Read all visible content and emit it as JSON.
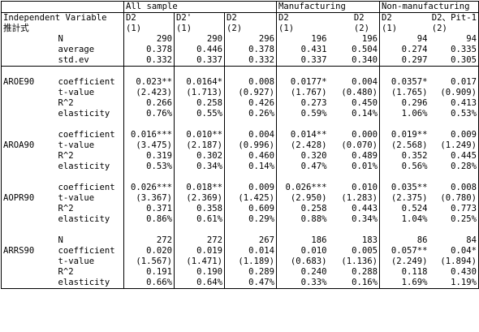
{
  "groups": {
    "all": "All sample",
    "mfg": "Manufacturing",
    "nonmfg": "Non-manufacturing"
  },
  "header": {
    "independent_variable": "Independent Variable",
    "estimation": "推計式",
    "columns": [
      {
        "name": "D2",
        "sub": "(1)"
      },
      {
        "name": "D2'",
        "sub": "(1)"
      },
      {
        "name": "D2",
        "sub": "(2)"
      },
      {
        "name": "D2",
        "sub": "(1)"
      },
      {
        "name": "D2",
        "sub": "(2)"
      },
      {
        "name": "D2",
        "sub": "(1)"
      },
      {
        "name": "D2、Pit-1",
        "sub": "(2)"
      }
    ]
  },
  "summary": {
    "n": {
      "label": "N",
      "values": [
        "290",
        "290",
        "296",
        "196",
        "196",
        "94",
        "94"
      ]
    },
    "average": {
      "label": "average",
      "values": [
        "0.378",
        "0.446",
        "0.378",
        "0.431",
        "0.504",
        "0.274",
        "0.335"
      ]
    },
    "stdev": {
      "label": "std.ev",
      "values": [
        "0.332",
        "0.337",
        "0.332",
        "0.337",
        "0.340",
        "0.297",
        "0.305"
      ]
    }
  },
  "blocks": [
    {
      "var": "AROE90",
      "coef": {
        "label": "coefficient",
        "values": [
          "0.023**",
          "0.0164*",
          "0.008",
          "0.0177*",
          "0.004",
          "0.0357*",
          "0.017"
        ]
      },
      "t": {
        "label": "t-value",
        "values": [
          "(2.423)",
          "(1.713)",
          "(0.927)",
          "(1.767)",
          "(0.480)",
          "(1.765)",
          "(0.909)"
        ]
      },
      "r2": {
        "label": "R^2",
        "values": [
          "0.266",
          "0.258",
          "0.426",
          "0.273",
          "0.450",
          "0.296",
          "0.413"
        ]
      },
      "el": {
        "label": "elasticity",
        "values": [
          "0.76%",
          "0.55%",
          "0.26%",
          "0.59%",
          "0.14%",
          "1.06%",
          "0.53%"
        ]
      }
    },
    {
      "var": "AROA90",
      "coef": {
        "label": "coefficient",
        "values": [
          "0.016***",
          "0.010**",
          "0.004",
          "0.014**",
          "0.000",
          "0.019**",
          "0.009"
        ]
      },
      "t": {
        "label": "t-value",
        "values": [
          "(3.475)",
          "(2.187)",
          "(0.996)",
          "(2.428)",
          "(0.070)",
          "(2.568)",
          "(1.249)"
        ]
      },
      "r2": {
        "label": "R^2",
        "values": [
          "0.319",
          "0.302",
          "0.460",
          "0.320",
          "0.489",
          "0.352",
          "0.445"
        ]
      },
      "el": {
        "label": "elasticity",
        "values": [
          "0.53%",
          "0.34%",
          "0.14%",
          "0.47%",
          "0.01%",
          "0.56%",
          "0.28%"
        ]
      }
    },
    {
      "var": "AOPR90",
      "coef": {
        "label": "coefficient",
        "values": [
          "0.026***",
          "0.018**",
          "0.009",
          "0.026***",
          "0.010",
          "0.035**",
          "0.008"
        ]
      },
      "t": {
        "label": "t-value",
        "values": [
          "(3.367)",
          "(2.369)",
          "(1.425)",
          "(2.950)",
          "(1.283)",
          "(2.375)",
          "(0.780)"
        ]
      },
      "r2": {
        "label": "R^2",
        "values": [
          "0.371",
          "0.358",
          "0.609",
          "0.258",
          "0.443",
          "0.524",
          "0.773"
        ]
      },
      "el": {
        "label": "elasticity",
        "values": [
          "0.86%",
          "0.61%",
          "0.29%",
          "0.88%",
          "0.34%",
          "1.04%",
          "0.25%"
        ]
      }
    },
    {
      "var": "ARRS90",
      "n": {
        "label": "N",
        "values": [
          "272",
          "272",
          "267",
          "186",
          "183",
          "86",
          "84"
        ]
      },
      "coef": {
        "label": "coefficient",
        "values": [
          "0.020",
          "0.019",
          "0.014",
          "0.010",
          "0.005",
          "0.057**",
          "0.04*"
        ]
      },
      "t": {
        "label": "t-value",
        "values": [
          "(1.567)",
          "(1.471)",
          "(1.189)",
          "(0.683)",
          "(1.136)",
          "(2.249)",
          "(1.894)"
        ]
      },
      "r2": {
        "label": "R^2",
        "values": [
          "0.191",
          "0.190",
          "0.289",
          "0.240",
          "0.288",
          "0.118",
          "0.430"
        ]
      },
      "el": {
        "label": "elasticity",
        "values": [
          "0.66%",
          "0.64%",
          "0.47%",
          "0.33%",
          "0.16%",
          "1.69%",
          "1.19%"
        ]
      }
    }
  ]
}
